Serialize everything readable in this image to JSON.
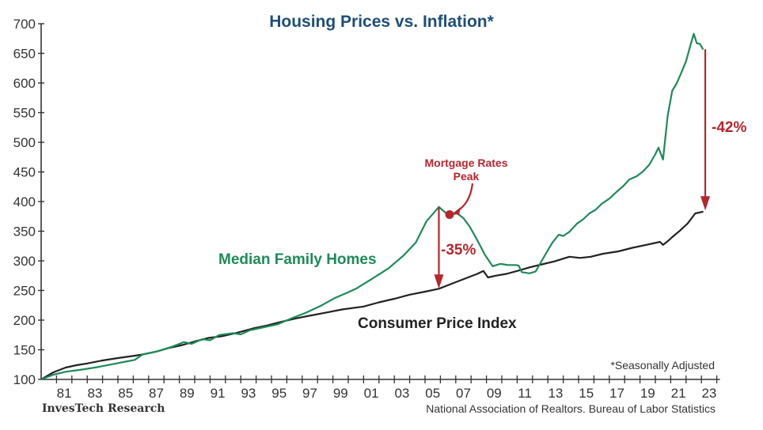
{
  "chart_data": {
    "type": "line",
    "title": "Housing Prices vs. Inflation*",
    "xlabel": "",
    "ylabel": "",
    "xlim": [
      1980,
      2024
    ],
    "ylim": [
      100,
      700
    ],
    "y_ticks": [
      100,
      150,
      200,
      250,
      300,
      350,
      400,
      450,
      500,
      550,
      600,
      650,
      700
    ],
    "x_tick_labels": [
      {
        "year": 1981,
        "label": "81"
      },
      {
        "year": 1983,
        "label": "83"
      },
      {
        "year": 1985,
        "label": "85"
      },
      {
        "year": 1987,
        "label": "87"
      },
      {
        "year": 1989,
        "label": "89"
      },
      {
        "year": 1991,
        "label": "91"
      },
      {
        "year": 1993,
        "label": "93"
      },
      {
        "year": 1995,
        "label": "95"
      },
      {
        "year": 1997,
        "label": "97"
      },
      {
        "year": 1999,
        "label": "99"
      },
      {
        "year": 2001,
        "label": "01"
      },
      {
        "year": 2003,
        "label": "03"
      },
      {
        "year": 2005,
        "label": "05"
      },
      {
        "year": 2007,
        "label": "07"
      },
      {
        "year": 2009,
        "label": "09"
      },
      {
        "year": 2011,
        "label": "11"
      },
      {
        "year": 2013,
        "label": "13"
      },
      {
        "year": 2015,
        "label": "15"
      },
      {
        "year": 2017,
        "label": "17"
      },
      {
        "year": 2019,
        "label": "19"
      },
      {
        "year": 2021,
        "label": "21"
      },
      {
        "year": 2023,
        "label": "23"
      }
    ],
    "grid": false,
    "series": [
      {
        "name": "Median Family Homes",
        "color": "#1e8a5a",
        "points": [
          [
            1980.0,
            100
          ],
          [
            1980.8,
            108
          ],
          [
            1981.6,
            113
          ],
          [
            1982.5,
            116
          ],
          [
            1983.5,
            120
          ],
          [
            1984.5,
            125
          ],
          [
            1985.5,
            130
          ],
          [
            1986.1,
            133
          ],
          [
            1986.6,
            142
          ],
          [
            1987.5,
            147
          ],
          [
            1988.5,
            155
          ],
          [
            1989.3,
            163
          ],
          [
            1989.8,
            160
          ],
          [
            1990.5,
            168
          ],
          [
            1991.0,
            166
          ],
          [
            1991.6,
            175
          ],
          [
            1992.5,
            178
          ],
          [
            1993.0,
            176
          ],
          [
            1993.6,
            183
          ],
          [
            1994.5,
            188
          ],
          [
            1995.4,
            193
          ],
          [
            1996.3,
            203
          ],
          [
            1997.2,
            212
          ],
          [
            1998.2,
            224
          ],
          [
            1999.1,
            237
          ],
          [
            2000.0,
            247
          ],
          [
            2000.5,
            253
          ],
          [
            2001.5,
            269
          ],
          [
            2002.6,
            287
          ],
          [
            2003.6,
            309
          ],
          [
            2004.4,
            331
          ],
          [
            2005.1,
            367
          ],
          [
            2005.9,
            391
          ],
          [
            2006.3,
            382
          ],
          [
            2006.6,
            378
          ],
          [
            2007.1,
            380
          ],
          [
            2007.5,
            372
          ],
          [
            2007.9,
            358
          ],
          [
            2008.4,
            335
          ],
          [
            2008.9,
            310
          ],
          [
            2009.4,
            291
          ],
          [
            2009.9,
            295
          ],
          [
            2010.4,
            293
          ],
          [
            2010.9,
            293
          ],
          [
            2011.1,
            292
          ],
          [
            2011.3,
            281
          ],
          [
            2011.8,
            279
          ],
          [
            2012.2,
            282
          ],
          [
            2012.6,
            300
          ],
          [
            2013.0,
            318
          ],
          [
            2013.3,
            331
          ],
          [
            2013.7,
            344
          ],
          [
            2014.0,
            342
          ],
          [
            2014.4,
            349
          ],
          [
            2014.9,
            363
          ],
          [
            2015.3,
            370
          ],
          [
            2015.7,
            380
          ],
          [
            2016.1,
            386
          ],
          [
            2016.5,
            396
          ],
          [
            2017.0,
            405
          ],
          [
            2017.5,
            417
          ],
          [
            2017.9,
            426
          ],
          [
            2018.3,
            437
          ],
          [
            2018.8,
            443
          ],
          [
            2019.2,
            451
          ],
          [
            2019.6,
            462
          ],
          [
            2020.0,
            480
          ],
          [
            2020.2,
            491
          ],
          [
            2020.5,
            471
          ],
          [
            2020.8,
            544
          ],
          [
            2021.1,
            587
          ],
          [
            2021.4,
            600
          ],
          [
            2021.7,
            618
          ],
          [
            2022.0,
            637
          ],
          [
            2022.3,
            665
          ],
          [
            2022.5,
            683
          ],
          [
            2022.7,
            667
          ],
          [
            2022.9,
            666
          ],
          [
            2023.1,
            657
          ]
        ]
      },
      {
        "name": "Consumer Price Index",
        "color": "#222222",
        "points": [
          [
            1980.0,
            100
          ],
          [
            1980.8,
            112
          ],
          [
            1981.6,
            120
          ],
          [
            1982.3,
            124
          ],
          [
            1983.0,
            127
          ],
          [
            1984.0,
            132
          ],
          [
            1985.0,
            136
          ],
          [
            1986.1,
            140
          ],
          [
            1986.6,
            142
          ],
          [
            1987.5,
            147
          ],
          [
            1988.3,
            153
          ],
          [
            1989.2,
            158
          ],
          [
            1990.0,
            164
          ],
          [
            1990.9,
            170
          ],
          [
            1991.8,
            173
          ],
          [
            1992.8,
            179
          ],
          [
            1993.8,
            186
          ],
          [
            1994.7,
            191
          ],
          [
            1995.6,
            197
          ],
          [
            1996.6,
            203
          ],
          [
            1997.6,
            208
          ],
          [
            1998.6,
            213
          ],
          [
            1999.6,
            218
          ],
          [
            2001.0,
            223
          ],
          [
            2002.0,
            230
          ],
          [
            2003.0,
            236
          ],
          [
            2004.0,
            243
          ],
          [
            2005.0,
            248
          ],
          [
            2005.9,
            253
          ],
          [
            2006.8,
            262
          ],
          [
            2007.6,
            270
          ],
          [
            2008.4,
            278
          ],
          [
            2008.8,
            283
          ],
          [
            2009.1,
            272
          ],
          [
            2009.6,
            275
          ],
          [
            2010.3,
            278
          ],
          [
            2011.0,
            283
          ],
          [
            2011.8,
            289
          ],
          [
            2012.6,
            294
          ],
          [
            2013.4,
            299
          ],
          [
            2014.4,
            307
          ],
          [
            2015.1,
            305
          ],
          [
            2015.8,
            307
          ],
          [
            2016.6,
            312
          ],
          [
            2017.6,
            316
          ],
          [
            2018.5,
            322
          ],
          [
            2019.4,
            327
          ],
          [
            2020.3,
            332
          ],
          [
            2020.5,
            327
          ],
          [
            2020.8,
            333
          ],
          [
            2021.1,
            340
          ],
          [
            2021.6,
            351
          ],
          [
            2022.1,
            363
          ],
          [
            2022.6,
            380
          ],
          [
            2023.1,
            383
          ]
        ]
      }
    ],
    "legend_labels": {
      "homes": "Median Family Homes",
      "cpi": "Consumer Price Index"
    },
    "annotations": {
      "mortgage_peak_line1": "Mortgage Rates",
      "mortgage_peak_line2": "Peak",
      "mortgage_peak_point": [
        2006.6,
        378
      ],
      "drop_2006": {
        "label": "-35%",
        "year": 2005.9,
        "from": 391,
        "to": 253
      },
      "drop_2022": {
        "label": "-42%",
        "year": 2023.25,
        "from": 657,
        "to": 385
      }
    },
    "footnote": "*Seasonally Adjusted",
    "source": "National Association of Realtors. Bureau of Labor Statistics",
    "brand": "InvesTech Research"
  },
  "colors": {
    "title": "#1f4e79",
    "homes": "#1e8a5a",
    "cpi": "#222222",
    "annotation": "#b5262d",
    "axis": "#333333"
  }
}
